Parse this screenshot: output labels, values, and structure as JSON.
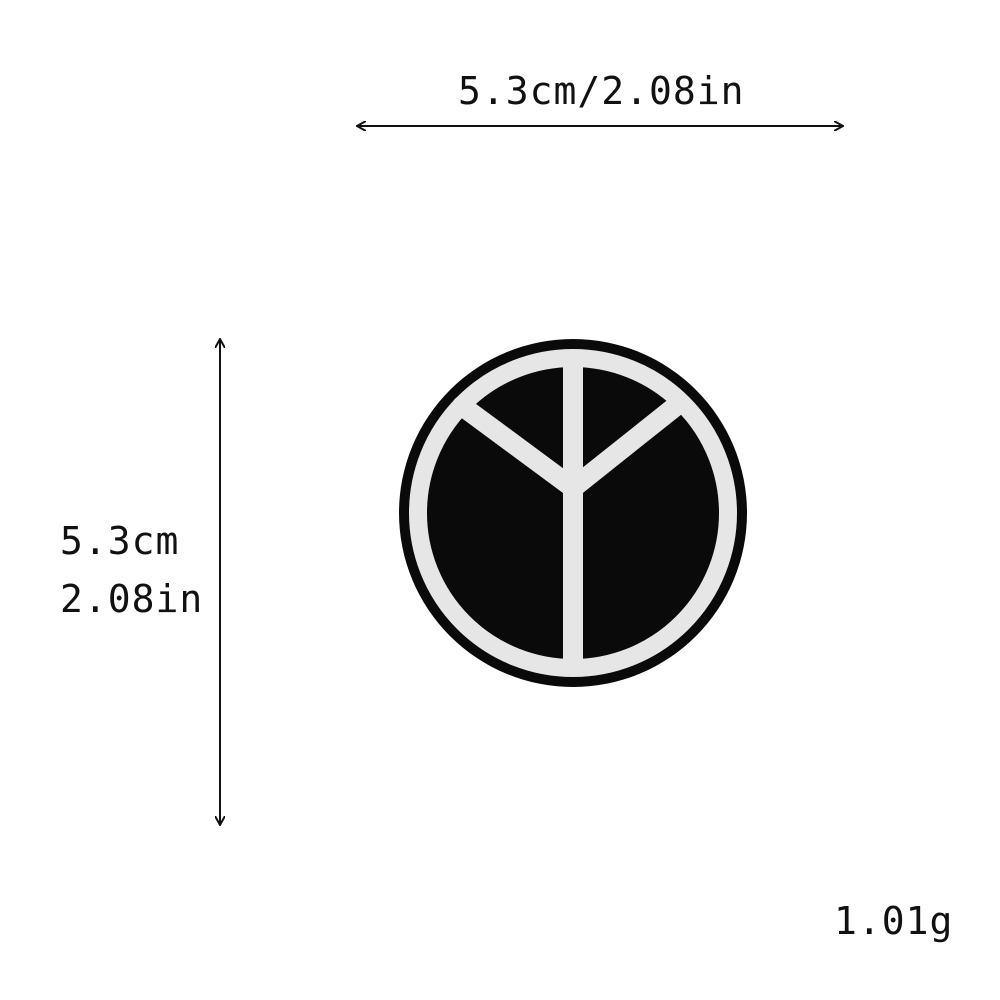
{
  "dimensions": {
    "width_label": "5.3cm/2.08in",
    "height_label_cm": "5.3cm",
    "height_label_in": "2.08in"
  },
  "weight_label": "1.01g",
  "product": {
    "icon": "peace-sign-patch",
    "fill_color": "#0a0a0a",
    "embroidery_color": "#e6e6e6"
  }
}
